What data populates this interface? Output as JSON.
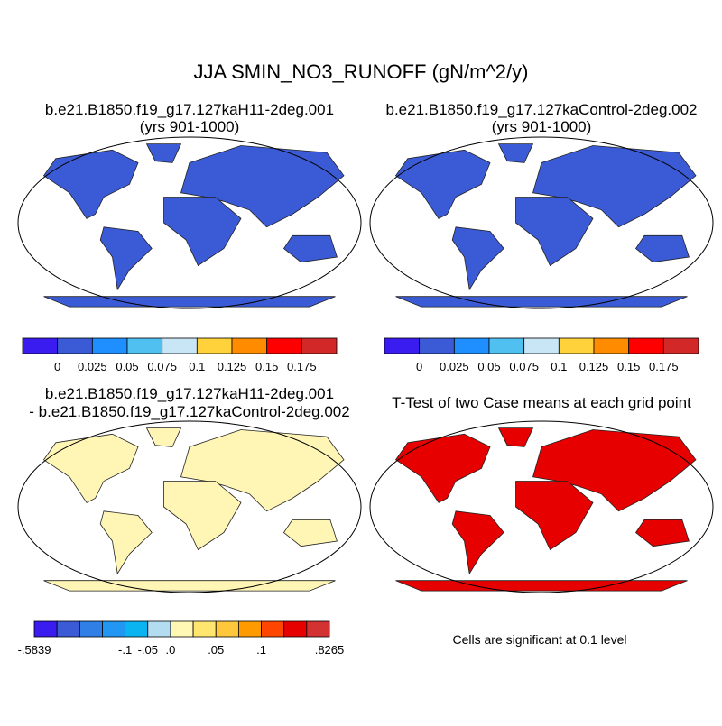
{
  "title": "JJA SMIN_NO3_RUNOFF (gN/m^2/y)",
  "panels": [
    {
      "title": "b.e21.B1850.f19_g17.127kaH11-2deg.001",
      "subtitle": "(yrs 901-1000)"
    },
    {
      "title": "b.e21.B1850.f19_g17.127kaControl-2deg.002",
      "subtitle": "(yrs 901-1000)"
    },
    {
      "title": "b.e21.B1850.f19_g17.127kaH11-2deg.001",
      "subtitle": "- b.e21.B1850.f19_g17.127kaControl-2deg.002"
    },
    {
      "title": "T-Test of two Case means at each grid point"
    }
  ],
  "colorbars": [
    {
      "colors": [
        "#3a1cf0",
        "#3b5bd6",
        "#1f8fff",
        "#4fc0f0",
        "#c8e6f5",
        "#ffd23c",
        "#ff8c00",
        "#ff0000",
        "#d22828"
      ],
      "labels": [
        null,
        "0",
        "0.025",
        "0.05",
        "0.075",
        "0.1",
        "0.125",
        "0.15",
        "0.175",
        null
      ]
    },
    {
      "colors": [
        "#3a1cf0",
        "#3b5bd6",
        "#1f8fff",
        "#4fc0f0",
        "#c8e6f5",
        "#ffd23c",
        "#ff8c00",
        "#ff0000",
        "#d22828"
      ],
      "labels": [
        null,
        "0",
        "0.025",
        "0.05",
        "0.075",
        "0.1",
        "0.125",
        "0.15",
        "0.175",
        null
      ]
    },
    {
      "colors": [
        "#3a1cf0",
        "#3b5bd6",
        "#2f7fe6",
        "#2196f3",
        "#0ab4f0",
        "#b4dcf0",
        "#fff8b4",
        "#ffe66e",
        "#ffc83c",
        "#ff9b00",
        "#ff4600",
        "#e60000",
        "#d23232"
      ],
      "labels": [
        "-.5839",
        null,
        null,
        null,
        "-.1",
        "-.05",
        ".0",
        null,
        ".05",
        null,
        ".1",
        null,
        null,
        ".8265"
      ]
    }
  ],
  "note": "Cells are significant at 0.1 level"
}
